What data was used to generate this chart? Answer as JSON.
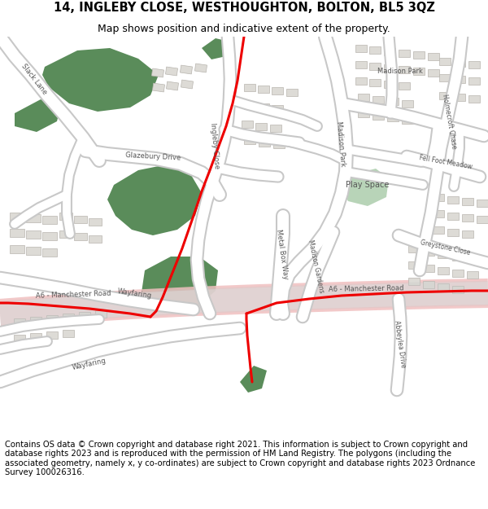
{
  "title": "14, INGLEBY CLOSE, WESTHOUGHTON, BOLTON, BL5 3QZ",
  "subtitle": "Map shows position and indicative extent of the property.",
  "footer": "Contains OS data © Crown copyright and database right 2021. This information is subject to Crown copyright and database rights 2023 and is reproduced with the permission of HM Land Registry. The polygons (including the associated geometry, namely x, y co-ordinates) are subject to Crown copyright and database rights 2023 Ordnance Survey 100026316.",
  "bg_color": "#eeedeb",
  "road_color": "#ffffff",
  "road_outline": "#c8c8c8",
  "green_dark": "#5a8c5a",
  "green_light": "#b8d4b8",
  "red_line": "#ee0000",
  "red_road": "#f0c0c0",
  "building_color": "#dddbd6",
  "building_outline": "#b8b5af",
  "title_fontsize": 10.5,
  "subtitle_fontsize": 9,
  "footer_fontsize": 7.2,
  "label_color": "#555555",
  "label_size": 6.2
}
